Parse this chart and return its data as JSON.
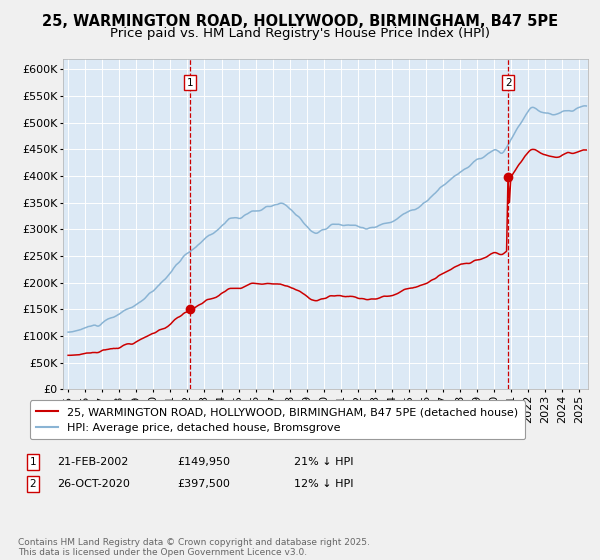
{
  "title_line1": "25, WARMINGTON ROAD, HOLLYWOOD, BIRMINGHAM, B47 5PE",
  "title_line2": "Price paid vs. HM Land Registry's House Price Index (HPI)",
  "ylabel_ticks": [
    "£0",
    "£50K",
    "£100K",
    "£150K",
    "£200K",
    "£250K",
    "£300K",
    "£350K",
    "£400K",
    "£450K",
    "£500K",
    "£550K",
    "£600K"
  ],
  "ytick_vals": [
    0,
    50000,
    100000,
    150000,
    200000,
    250000,
    300000,
    350000,
    400000,
    450000,
    500000,
    550000,
    600000
  ],
  "ylim": [
    0,
    620000
  ],
  "xlim_start": 1994.7,
  "xlim_end": 2025.5,
  "xtick_years": [
    1995,
    1996,
    1997,
    1998,
    1999,
    2000,
    2001,
    2002,
    2003,
    2004,
    2005,
    2006,
    2007,
    2008,
    2009,
    2010,
    2011,
    2012,
    2013,
    2014,
    2015,
    2016,
    2017,
    2018,
    2019,
    2020,
    2021,
    2022,
    2023,
    2024,
    2025
  ],
  "hpi_color": "#8ab4d4",
  "price_color": "#cc0000",
  "marker_color": "#cc0000",
  "vline_color": "#cc0000",
  "background_color": "#dce9f5",
  "grid_color": "#ffffff",
  "fig_bg_color": "#f0f0f0",
  "purchase1_x": 2002.13,
  "purchase1_y": 149950,
  "purchase1_label": "1",
  "purchase2_x": 2020.82,
  "purchase2_y": 397500,
  "purchase2_label": "2",
  "legend_label_red": "25, WARMINGTON ROAD, HOLLYWOOD, BIRMINGHAM, B47 5PE (detached house)",
  "legend_label_blue": "HPI: Average price, detached house, Bromsgrove",
  "annotation1_date": "21-FEB-2002",
  "annotation1_price": "£149,950",
  "annotation1_hpi": "21% ↓ HPI",
  "annotation2_date": "26-OCT-2020",
  "annotation2_price": "£397,500",
  "annotation2_hpi": "12% ↓ HPI",
  "footer_text": "Contains HM Land Registry data © Crown copyright and database right 2025.\nThis data is licensed under the Open Government Licence v3.0.",
  "title_fontsize": 10.5,
  "subtitle_fontsize": 9.5,
  "tick_fontsize": 8,
  "legend_fontsize": 8,
  "annotation_fontsize": 8
}
